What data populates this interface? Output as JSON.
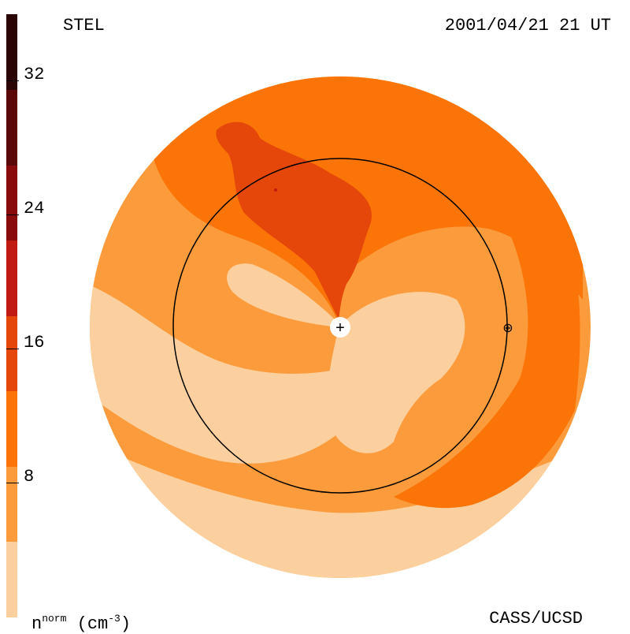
{
  "header": {
    "source": "STEL",
    "timestamp": "2001/04/21 21 UT"
  },
  "footer": {
    "credit": "CASS/UCSD"
  },
  "colorbar": {
    "unit_base": "n",
    "unit_sup": "norm",
    "unit_rest": "(cm",
    "unit_exp": "-3",
    "unit_close": ")",
    "ticks": [
      "32",
      "24",
      "16",
      "8"
    ],
    "levels": [
      "#fbd09e",
      "#fb9b3c",
      "#fb7408",
      "#e5460a",
      "#c01a12",
      "#8a0b0b",
      "#5a0808",
      "#2c0606"
    ]
  },
  "markers": {
    "sun_symbol": "+",
    "earth_symbol": "⊕"
  }
}
